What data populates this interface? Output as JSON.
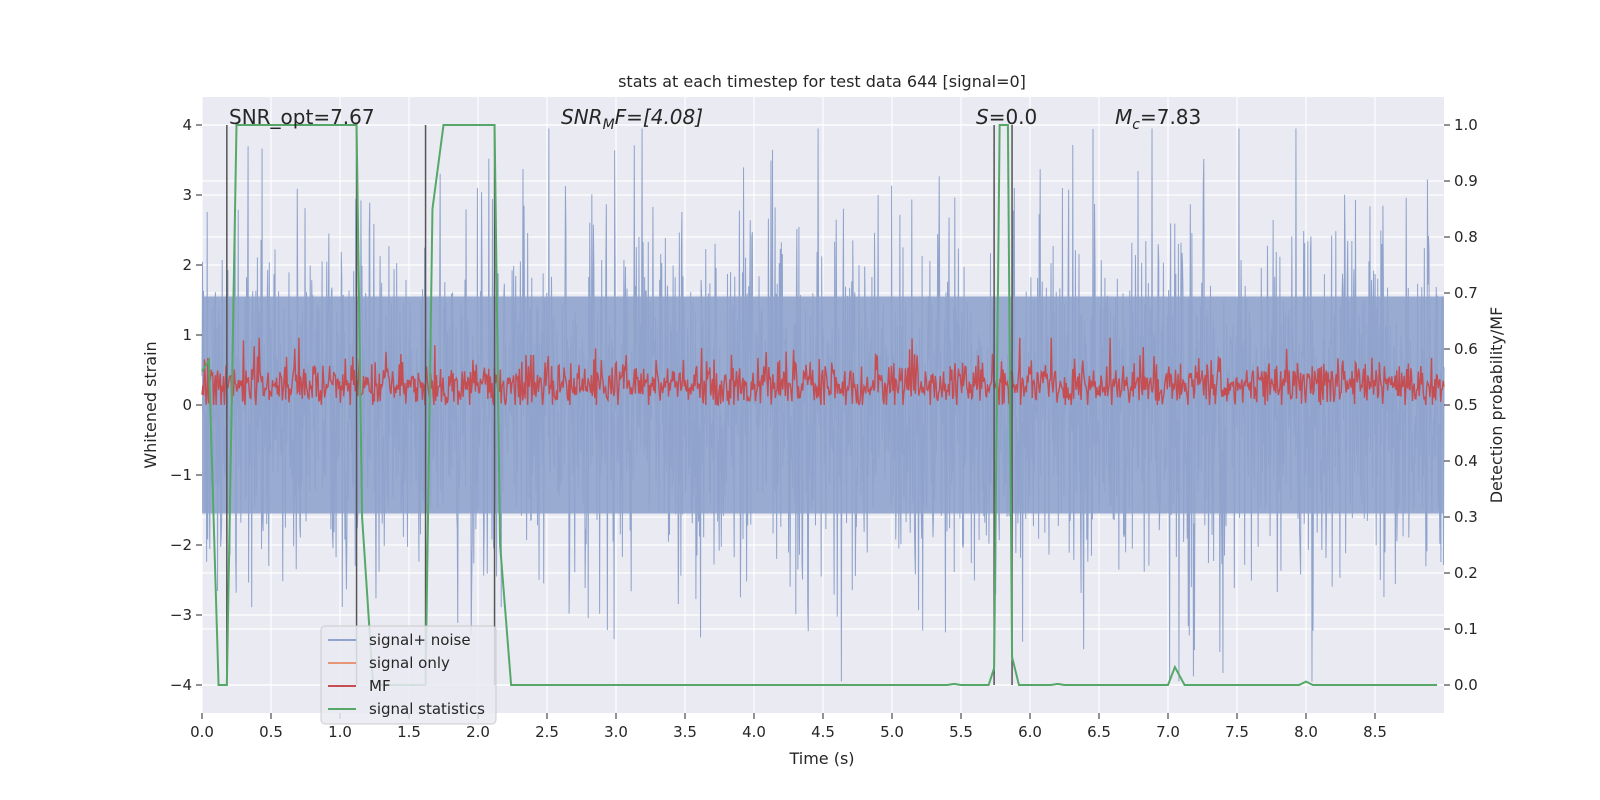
{
  "chart_data": {
    "type": "line",
    "title": "stats at each timestep for test data 644 [signal=0]",
    "xlabel": "Time (s)",
    "ylabel_left": "Whitened strain",
    "ylabel_right": "Detection probability/MF",
    "xlim": [
      0.0,
      9.0
    ],
    "ylim_left": [
      -4.4,
      4.4
    ],
    "ylim_right": [
      -0.05,
      1.05
    ],
    "xticks": [
      "0.0",
      "0.5",
      "1.0",
      "1.5",
      "2.0",
      "2.5",
      "3.0",
      "3.5",
      "4.0",
      "4.5",
      "5.0",
      "5.5",
      "6.0",
      "6.5",
      "7.0",
      "7.5",
      "8.0",
      "8.5"
    ],
    "yticks_left": [
      "4",
      "3",
      "2",
      "1",
      "0",
      "−1",
      "−2",
      "−3",
      "−4"
    ],
    "yticks_right": [
      "1.0",
      "0.9",
      "0.8",
      "0.7",
      "0.6",
      "0.5",
      "0.4",
      "0.3",
      "0.2",
      "0.1",
      "0.0"
    ],
    "grid": true,
    "legend_position": "lower-left",
    "annotations": {
      "snr_opt": "SNR_opt=7.67",
      "snr_mf_name": "SNR",
      "snr_mf_sub": "M",
      "snr_mf_rest": "F=[4.08]",
      "s_name": "S",
      "s_rest": "=0.0",
      "mc_name": "M",
      "mc_sub": "c",
      "mc_rest": "=7.83"
    },
    "series": [
      {
        "name": "signal+ noise",
        "color": "#8fa3cc",
        "axis": "left",
        "description": "noise trace spanning roughly -3.9 to 3.9"
      },
      {
        "name": "signal only",
        "color": "#e8967a",
        "axis": "left",
        "values": []
      },
      {
        "name": "MF",
        "color": "#c44e52",
        "axis": "right",
        "description": "matched-filter output around 0.5 to 0.6"
      },
      {
        "name": "signal statistics",
        "color": "#55a868",
        "axis": "right",
        "x": [
          0.0,
          0.05,
          0.12,
          0.18,
          0.25,
          1.12,
          1.16,
          1.24,
          1.62,
          1.67,
          1.75,
          2.12,
          2.16,
          2.24,
          5.4,
          5.45,
          5.5,
          5.7,
          5.74,
          5.78,
          5.84,
          5.87,
          5.92,
          6.15,
          6.2,
          6.25,
          7.0,
          7.05,
          7.12,
          7.95,
          8.0,
          8.05,
          8.95
        ],
        "values": [
          0.56,
          0.58,
          0.0,
          0.0,
          1.0,
          1.0,
          0.3,
          0.0,
          0.0,
          0.85,
          1.0,
          1.0,
          0.25,
          0.0,
          0.0,
          0.002,
          0.0,
          0.0,
          0.03,
          1.0,
          1.0,
          0.05,
          0.0,
          0.0,
          0.002,
          0.0,
          0.0,
          0.032,
          0.0,
          0.0,
          0.006,
          0.0,
          0.0
        ]
      }
    ],
    "vertical_lines_x": [
      0.18,
      1.12,
      1.62,
      2.12,
      5.74,
      5.87
    ]
  }
}
